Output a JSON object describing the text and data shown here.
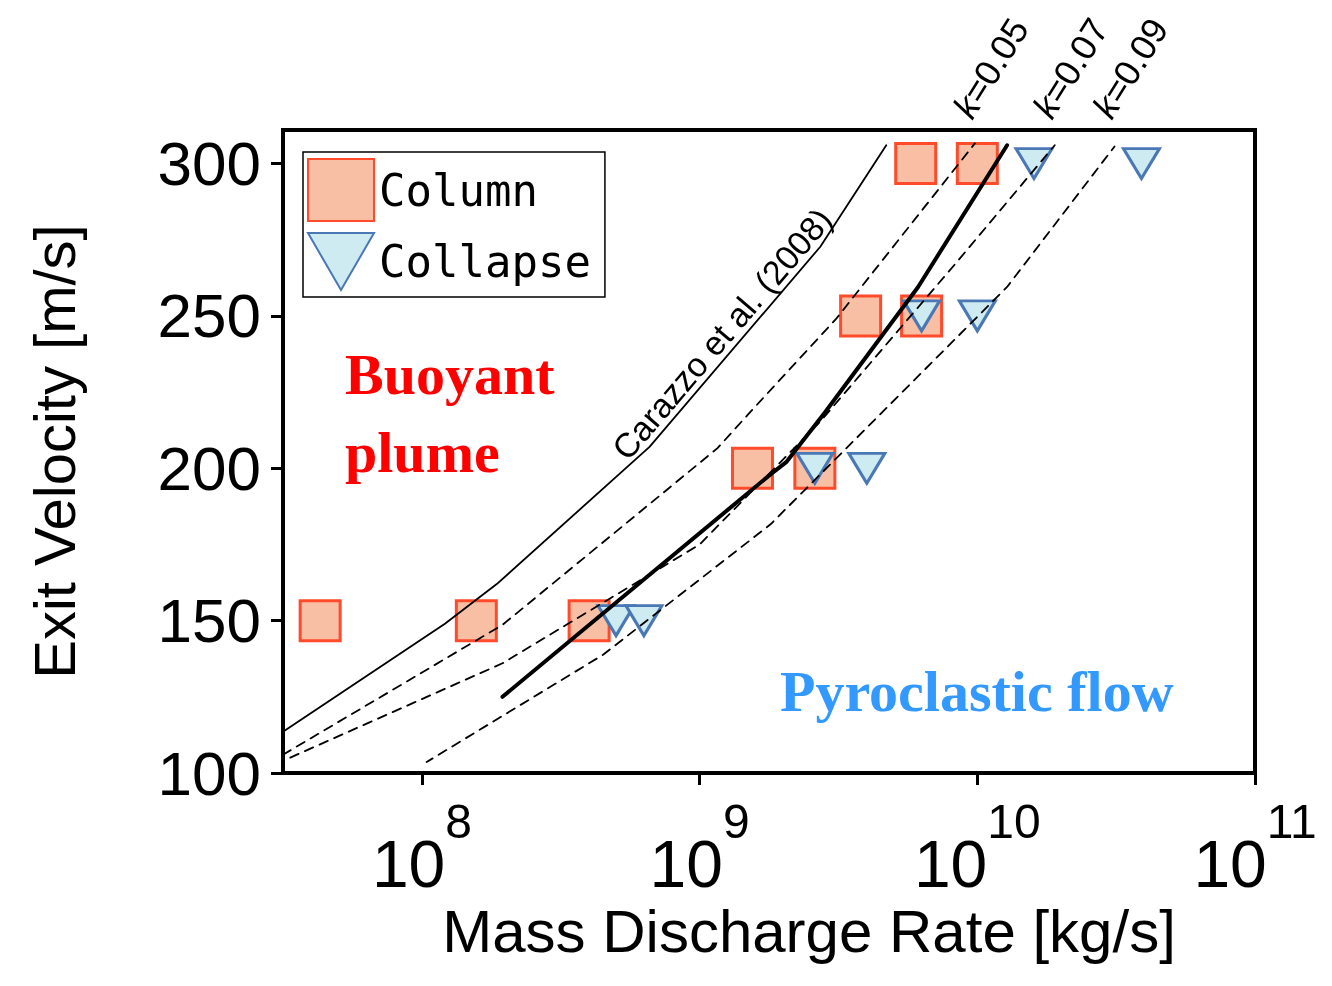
{
  "chart_data": {
    "type": "scatter",
    "xlabel": "Mass Discharge Rate [kg/s]",
    "ylabel": "Exit Velocity [m/s]",
    "log": "x",
    "xlim": [
      31600000.0,
      100000000000.0
    ],
    "xticks": [
      {
        "value": 100000000.0,
        "label": "10$^{8}$"
      },
      {
        "value": 1000000000.0,
        "label": "10$^{9}$"
      },
      {
        "value": 10000000000.0,
        "label": "10$^{10}$"
      },
      {
        "value": 100000000000.0,
        "label": "10$^{11}$"
      }
    ],
    "ylim": [
      100,
      311
    ],
    "yticks": [
      100,
      150,
      200,
      250,
      300
    ],
    "legend": "top left",
    "annotations": [
      "Buoyant plume",
      "Pyroclastic flow"
    ],
    "series": [
      {
        "type": "line",
        "name": "Carazzo et al. (2008)",
        "color": "#000000",
        "line_style": "solid",
        "marker": "none",
        "x": [
          31600000.0,
          121000000.0,
          186000000.0,
          660000000.0,
          2720000000.0,
          4700000000.0
        ],
        "values": [
          113.5,
          149,
          162,
          207,
          272.7,
          306
        ]
      },
      {
        "type": "line",
        "name": "k=0.05",
        "color": "#000000",
        "line_style": "dashed",
        "marker": "none",
        "x": [
          31600000.0,
          195000000.0,
          1160000000.0,
          1520000000.0,
          3100000000.0,
          9800000000.0
        ],
        "values": [
          106,
          148.6,
          206.6,
          218.4,
          249,
          306.6
        ]
      },
      {
        "type": "line",
        "name": "k=0.07",
        "color": "#000000",
        "line_style": "dashed",
        "marker": "none",
        "x": [
          31600000.0,
          195000000.0,
          1000000000.0,
          2700000000.0,
          8500000000.0,
          19000000000.0
        ],
        "values": [
          104,
          136,
          175,
          215,
          268,
          306
        ]
      },
      {
        "type": "line",
        "name": "k=0.09",
        "color": "#000000",
        "line_style": "dashed",
        "marker": "none",
        "x": [
          104000000.0,
          449000000.0,
          1800000000.0,
          12800000000.0,
          31200000000.0
        ],
        "values": [
          103.6,
          138.8,
          181.6,
          259.5,
          305.6
        ]
      },
      {
        "type": "line",
        "color": "#000000",
        "line_style": "solid",
        "marker": "none",
        "x": [
          195000000.0,
          1800000000.0,
          2050000000.0,
          2830000000.0,
          6120000000.0,
          12800000000.0
        ],
        "values": [
          125,
          198,
          202,
          218.4,
          259.5,
          306
        ]
      },
      {
        "name": "Column",
        "color": "#f9bfa5",
        "marker": "square",
        "x": [
          43000000.0,
          157000000.0,
          400000000.0,
          1550000000.0,
          2600000000.0,
          3800000000.0,
          6300000000.0,
          6000000000.0,
          10000000000.0
        ],
        "values": [
          150,
          150,
          150,
          200,
          200,
          250,
          250,
          300,
          300
        ]
      },
      {
        "name": "Collapse",
        "color": "#cdebf0",
        "marker": "triangle",
        "x": [
          500000000.0,
          630000000.0,
          2600000000.0,
          4000000000.0,
          6300000000.0,
          10000000000.0,
          16000000000.0,
          39000000000.0
        ],
        "values": [
          150,
          150,
          200,
          200,
          250,
          250,
          300,
          300
        ]
      }
    ]
  }
}
